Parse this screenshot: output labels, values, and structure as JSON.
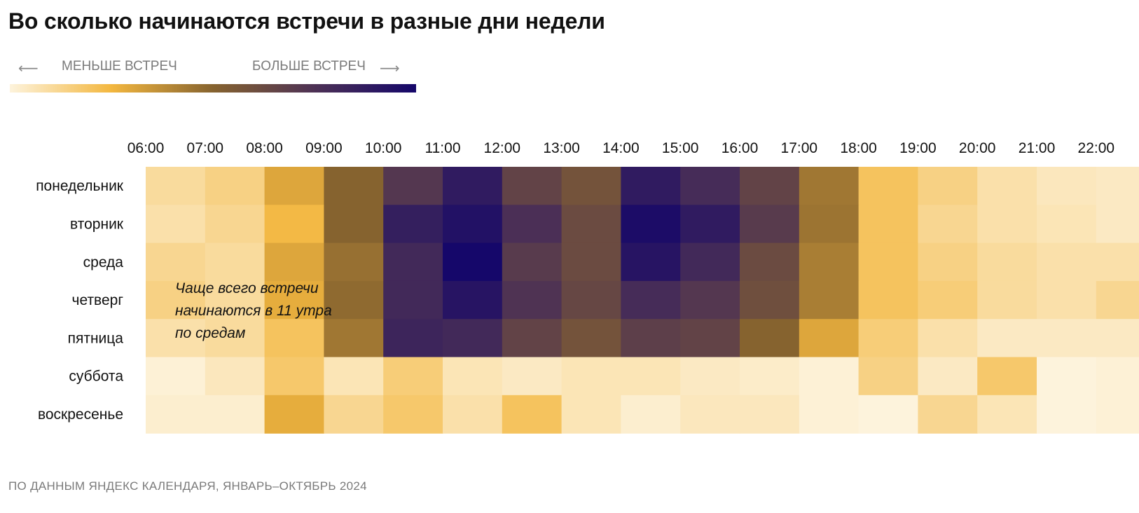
{
  "header": {
    "title": "Во сколько начинаются встречи в разные дни недели"
  },
  "legend": {
    "less_label": "МЕНЬШЕ ВСТРЕЧ",
    "more_label": "БОЛЬШЕ ВСТРЕЧ",
    "left_arrow": "⟵",
    "right_arrow": "⟶",
    "gradient_colors": [
      "#fdf3dc",
      "#f3b73f",
      "#86632f",
      "#4d3155",
      "#15076a"
    ]
  },
  "footer": {
    "source": "ПО ДАННЫМ ЯНДЕКС КАЛЕНДАРЯ, ЯНВАРЬ–ОКТЯБРЬ 2024"
  },
  "chart_data": {
    "type": "heatmap",
    "title": "Во сколько начинаются встречи в разные дни недели",
    "x_categories": [
      "06:00",
      "07:00",
      "08:00",
      "09:00",
      "10:00",
      "11:00",
      "12:00",
      "13:00",
      "14:00",
      "15:00",
      "16:00",
      "17:00",
      "18:00",
      "19:00",
      "20:00",
      "21:00",
      "22:00"
    ],
    "y_categories": [
      "понедельник",
      "вторник",
      "среда",
      "четверг",
      "пятница",
      "суббота",
      "воскресенье"
    ],
    "scale": "relative meeting frequency, 0 = меньше встреч, 1 = больше встреч",
    "values": [
      [
        0.1,
        0.14,
        0.3,
        0.5,
        0.72,
        0.88,
        0.66,
        0.58,
        0.88,
        0.78,
        0.66,
        0.44,
        0.2,
        0.14,
        0.08,
        0.05,
        0.04
      ],
      [
        0.08,
        0.12,
        0.24,
        0.5,
        0.86,
        0.94,
        0.76,
        0.62,
        0.97,
        0.88,
        0.7,
        0.45,
        0.2,
        0.12,
        0.08,
        0.06,
        0.04
      ],
      [
        0.12,
        0.1,
        0.3,
        0.46,
        0.8,
        1.0,
        0.7,
        0.62,
        0.92,
        0.8,
        0.62,
        0.42,
        0.2,
        0.14,
        0.1,
        0.08,
        0.08
      ],
      [
        0.14,
        0.1,
        0.28,
        0.48,
        0.8,
        0.92,
        0.74,
        0.64,
        0.78,
        0.72,
        0.6,
        0.42,
        0.2,
        0.16,
        0.1,
        0.08,
        0.12
      ],
      [
        0.08,
        0.1,
        0.2,
        0.44,
        0.82,
        0.8,
        0.66,
        0.58,
        0.68,
        0.66,
        0.5,
        0.3,
        0.16,
        0.08,
        0.04,
        0.04,
        0.04
      ],
      [
        0.01,
        0.05,
        0.18,
        0.06,
        0.16,
        0.06,
        0.04,
        0.06,
        0.06,
        0.04,
        0.03,
        0.01,
        0.14,
        0.04,
        0.18,
        0.0,
        0.01
      ],
      [
        0.02,
        0.02,
        0.28,
        0.12,
        0.18,
        0.08,
        0.2,
        0.06,
        0.02,
        0.05,
        0.05,
        0.01,
        0.0,
        0.12,
        0.06,
        0.0,
        0.01
      ]
    ],
    "annotations": [
      {
        "lines": [
          "Чаще всего встречи",
          "начинаются в 11 утра",
          "по средам"
        ],
        "anchor_cell": {
          "row": "среда",
          "column": "11:00"
        }
      }
    ],
    "grid": false,
    "legend_position": "top-left"
  }
}
